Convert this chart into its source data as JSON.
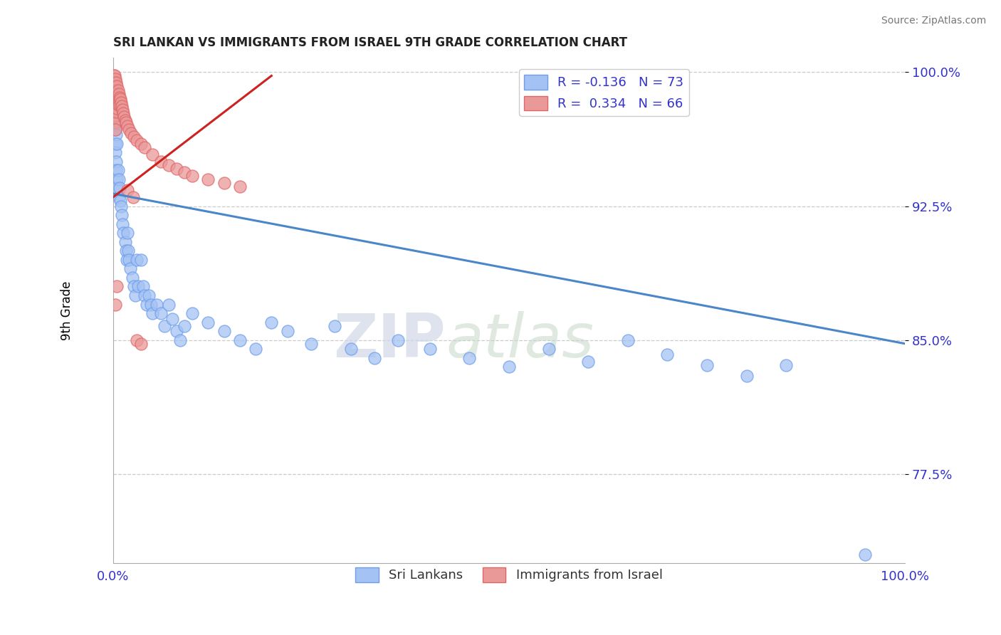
{
  "title": "SRI LANKAN VS IMMIGRANTS FROM ISRAEL 9TH GRADE CORRELATION CHART",
  "source_text": "Source: ZipAtlas.com",
  "ylabel": "9th Grade",
  "xlim": [
    0.0,
    1.0
  ],
  "ylim": [
    0.725,
    1.008
  ],
  "yticks": [
    1.0,
    0.925,
    0.85,
    0.775
  ],
  "ytick_labels": [
    "100.0%",
    "92.5%",
    "85.0%",
    "77.5%"
  ],
  "xtick_labels": [
    "0.0%",
    "100.0%"
  ],
  "xticks": [
    0.0,
    1.0
  ],
  "blue_color": "#a4c2f4",
  "pink_color": "#ea9999",
  "blue_edge_color": "#6d9eeb",
  "pink_edge_color": "#e06666",
  "blue_line_color": "#4a86c8",
  "pink_line_color": "#cc2222",
  "legend_blue_label": "R = -0.136   N = 73",
  "legend_pink_label": "R =  0.334   N = 66",
  "legend_sri_label": "Sri Lankans",
  "legend_israel_label": "Immigrants from Israel",
  "watermark_zip": "ZIP",
  "watermark_atlas": "atlas",
  "blue_line_x0": 0.0,
  "blue_line_y0": 0.932,
  "blue_line_x1": 1.0,
  "blue_line_y1": 0.848,
  "pink_line_x0": 0.0,
  "pink_line_y0": 0.93,
  "pink_line_x1": 0.2,
  "pink_line_y1": 0.998,
  "blue_scatter_x": [
    0.001,
    0.001,
    0.002,
    0.002,
    0.002,
    0.003,
    0.003,
    0.003,
    0.004,
    0.004,
    0.004,
    0.005,
    0.005,
    0.005,
    0.006,
    0.007,
    0.007,
    0.008,
    0.009,
    0.01,
    0.011,
    0.012,
    0.013,
    0.015,
    0.016,
    0.017,
    0.018,
    0.019,
    0.02,
    0.022,
    0.024,
    0.026,
    0.028,
    0.03,
    0.032,
    0.035,
    0.038,
    0.04,
    0.042,
    0.045,
    0.048,
    0.05,
    0.055,
    0.06,
    0.065,
    0.07,
    0.075,
    0.08,
    0.085,
    0.09,
    0.1,
    0.12,
    0.14,
    0.16,
    0.18,
    0.2,
    0.22,
    0.25,
    0.28,
    0.3,
    0.33,
    0.36,
    0.4,
    0.45,
    0.5,
    0.55,
    0.6,
    0.65,
    0.7,
    0.75,
    0.8,
    0.85,
    0.95
  ],
  "blue_scatter_y": [
    0.99,
    0.985,
    0.98,
    0.975,
    0.97,
    0.968,
    0.96,
    0.955,
    0.965,
    0.95,
    0.945,
    0.96,
    0.94,
    0.935,
    0.945,
    0.94,
    0.93,
    0.935,
    0.928,
    0.925,
    0.92,
    0.915,
    0.91,
    0.905,
    0.9,
    0.895,
    0.91,
    0.9,
    0.895,
    0.89,
    0.885,
    0.88,
    0.875,
    0.895,
    0.88,
    0.895,
    0.88,
    0.875,
    0.87,
    0.875,
    0.87,
    0.865,
    0.87,
    0.865,
    0.858,
    0.87,
    0.862,
    0.855,
    0.85,
    0.858,
    0.865,
    0.86,
    0.855,
    0.85,
    0.845,
    0.86,
    0.855,
    0.848,
    0.858,
    0.845,
    0.84,
    0.85,
    0.845,
    0.84,
    0.835,
    0.845,
    0.838,
    0.85,
    0.842,
    0.836,
    0.83,
    0.836,
    0.73
  ],
  "pink_scatter_x": [
    0.001,
    0.001,
    0.001,
    0.001,
    0.001,
    0.002,
    0.002,
    0.002,
    0.002,
    0.002,
    0.002,
    0.002,
    0.003,
    0.003,
    0.003,
    0.003,
    0.003,
    0.003,
    0.003,
    0.003,
    0.004,
    0.004,
    0.004,
    0.004,
    0.004,
    0.005,
    0.005,
    0.005,
    0.005,
    0.006,
    0.006,
    0.006,
    0.007,
    0.007,
    0.008,
    0.008,
    0.009,
    0.01,
    0.011,
    0.012,
    0.013,
    0.014,
    0.015,
    0.016,
    0.018,
    0.02,
    0.023,
    0.026,
    0.03,
    0.035,
    0.04,
    0.05,
    0.06,
    0.07,
    0.08,
    0.09,
    0.1,
    0.12,
    0.14,
    0.16,
    0.018,
    0.025,
    0.03,
    0.035,
    0.005,
    0.003
  ],
  "pink_scatter_y": [
    0.998,
    0.995,
    0.992,
    0.988,
    0.985,
    0.998,
    0.994,
    0.99,
    0.986,
    0.982,
    0.978,
    0.975,
    0.996,
    0.992,
    0.988,
    0.984,
    0.98,
    0.976,
    0.972,
    0.968,
    0.994,
    0.99,
    0.986,
    0.982,
    0.978,
    0.992,
    0.988,
    0.984,
    0.98,
    0.99,
    0.986,
    0.982,
    0.988,
    0.984,
    0.986,
    0.982,
    0.985,
    0.983,
    0.981,
    0.979,
    0.977,
    0.975,
    0.973,
    0.972,
    0.97,
    0.968,
    0.966,
    0.964,
    0.962,
    0.96,
    0.958,
    0.954,
    0.95,
    0.948,
    0.946,
    0.944,
    0.942,
    0.94,
    0.938,
    0.936,
    0.934,
    0.93,
    0.85,
    0.848,
    0.88,
    0.87
  ]
}
